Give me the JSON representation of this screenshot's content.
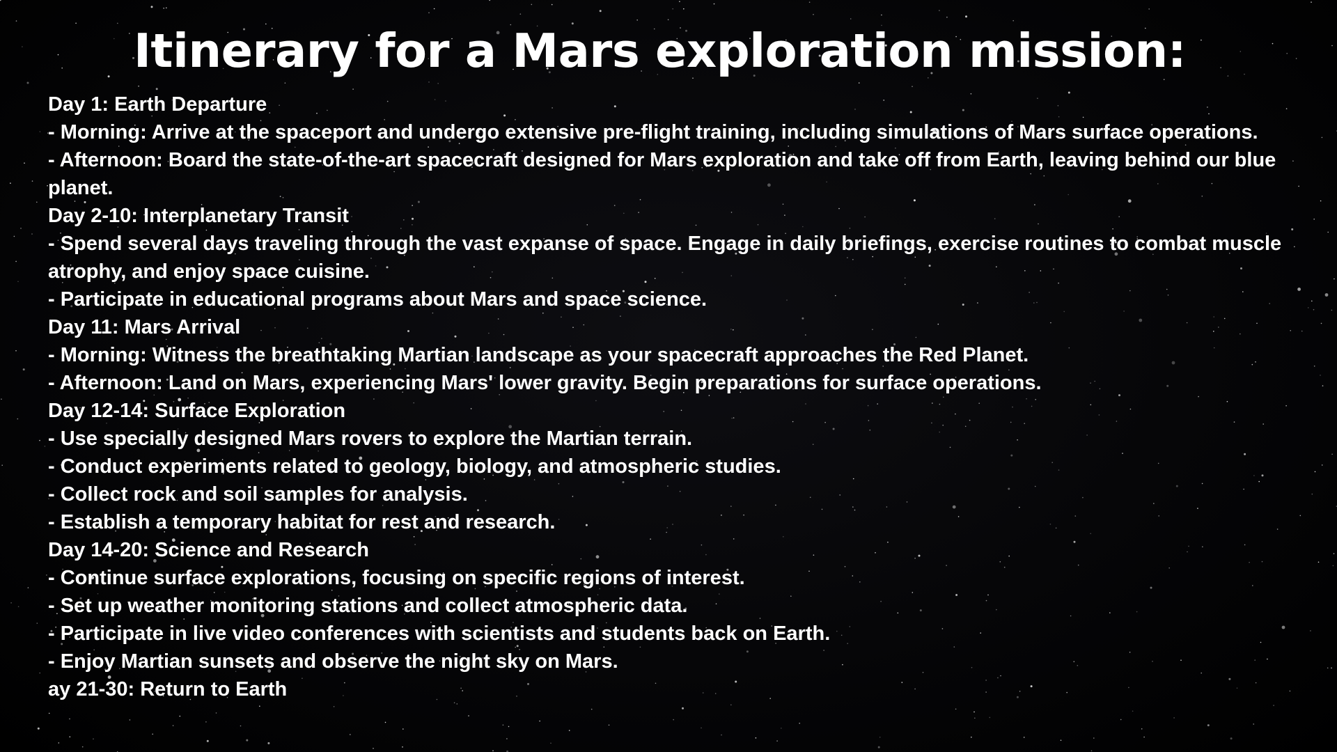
{
  "title": "Itinerary for a Mars exploration mission:",
  "colors": {
    "background": "#000000",
    "text": "#ffffff"
  },
  "lines": [
    "Day 1: Earth Departure",
    "- Morning: Arrive at the spaceport and undergo extensive pre-flight training, including simulations of Mars surface operations.",
    "- Afternoon: Board the state-of-the-art spacecraft designed for Mars exploration and take off from Earth, leaving behind our blue planet.",
    "Day 2-10: Interplanetary Transit",
    "- Spend several days traveling through the vast expanse of space. Engage in daily briefings, exercise routines to combat muscle atrophy, and enjoy space cuisine.",
    "- Participate in educational programs about Mars and space science.",
    "Day 11: Mars Arrival",
    "- Morning: Witness the breathtaking Martian landscape as your spacecraft approaches the Red Planet.",
    "- Afternoon: Land on Mars, experiencing Mars' lower gravity. Begin preparations for surface operations.",
    "Day 12-14: Surface Exploration",
    "- Use specially designed Mars rovers to explore the Martian terrain.",
    "- Conduct experiments related to geology, biology, and atmospheric studies.",
    "- Collect rock and soil samples for analysis.",
    "- Establish a temporary habitat for rest and research.",
    "Day 14-20: Science and Research",
    "- Continue surface explorations, focusing on specific regions of interest.",
    "- Set up weather monitoring stations and collect atmospheric data.",
    "- Participate in live video conferences with scientists and students back on Earth.",
    "- Enjoy Martian sunsets and observe the night sky on Mars.",
    "ay 21-30: Return to Earth"
  ]
}
